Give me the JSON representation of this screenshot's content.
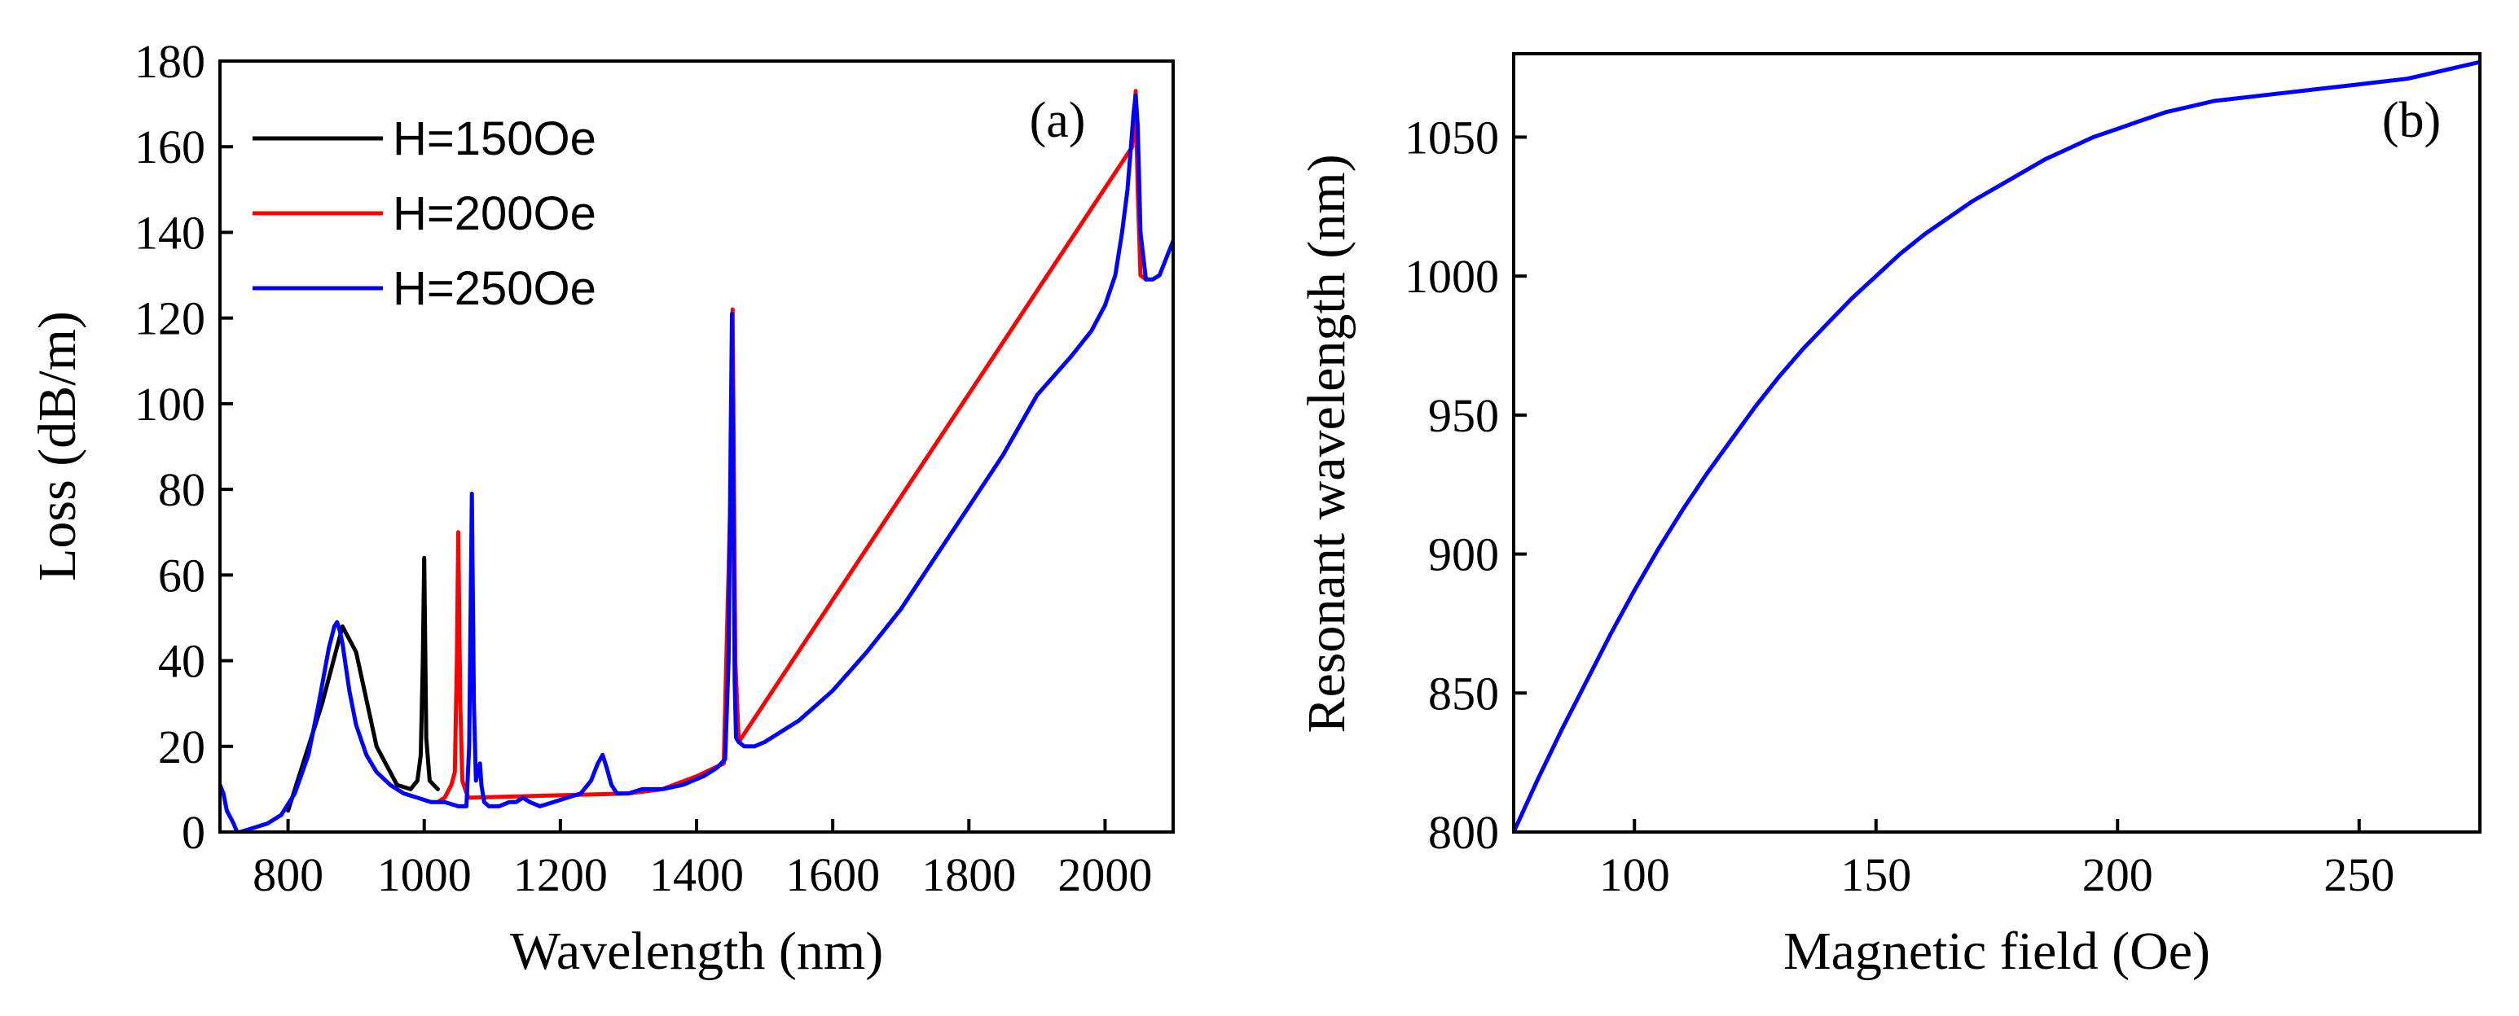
{
  "chart_data": [
    {
      "type": "line",
      "panel_label": "(a)",
      "xlabel": "Wavelength (nm)",
      "ylabel": "Loss (dB/m)",
      "xlim": [
        700,
        2100
      ],
      "ylim": [
        0,
        180
      ],
      "xticks": [
        800,
        1000,
        1200,
        1400,
        1600,
        1800,
        2000
      ],
      "yticks": [
        0,
        20,
        40,
        60,
        80,
        100,
        120,
        140,
        160,
        180
      ],
      "legend_position": "top-left",
      "series": [
        {
          "name": "H=150Oe",
          "color": "#000000",
          "x": [
            800,
            850,
            880,
            900,
            930,
            960,
            980,
            990,
            995,
            998,
            1000,
            1003,
            1008,
            1020
          ],
          "y": [
            5,
            30,
            48,
            42,
            20,
            11,
            10,
            12,
            18,
            40,
            64,
            22,
            12,
            10
          ]
        },
        {
          "name": "H=200Oe",
          "color": "#ff0000",
          "x": [
            1020,
            1030,
            1040,
            1045,
            1048,
            1050,
            1053,
            1056,
            1060,
            1065,
            1300,
            1350,
            1400,
            1440,
            1450,
            1453,
            1457,
            1462,
            2040,
            2045,
            2048,
            2052,
            2060
          ],
          "y": [
            7,
            8,
            11,
            14,
            40,
            70,
            30,
            12,
            10,
            8,
            9,
            10,
            13,
            16,
            80,
            122,
            40,
            21,
            160,
            173,
            150,
            130,
            129
          ]
        },
        {
          "name": "H=250Oe",
          "color": "#0000ff",
          "x": [
            700,
            705,
            710,
            720,
            725,
            730,
            750,
            770,
            790,
            810,
            830,
            845,
            860,
            868,
            872,
            876,
            880,
            890,
            900,
            915,
            930,
            950,
            970,
            990,
            1010,
            1030,
            1050,
            1062,
            1066,
            1070,
            1073,
            1076,
            1079,
            1082,
            1084,
            1088,
            1095,
            1110,
            1125,
            1135,
            1145,
            1155,
            1170,
            1190,
            1210,
            1230,
            1245,
            1255,
            1262,
            1268,
            1275,
            1283,
            1290,
            1300,
            1320,
            1350,
            1380,
            1410,
            1430,
            1442,
            1447,
            1450,
            1452,
            1454,
            1456,
            1458,
            1462,
            1470,
            1485,
            1500,
            1520,
            1550,
            1600,
            1650,
            1700,
            1750,
            1800,
            1850,
            1900,
            1950,
            1980,
            2000,
            2015,
            2025,
            2033,
            2038,
            2042,
            2045,
            2048,
            2052,
            2060,
            2070,
            2080,
            2090,
            2100
          ],
          "y": [
            11,
            9,
            5,
            2,
            0,
            0,
            1,
            2,
            4,
            9,
            18,
            30,
            43,
            48,
            49,
            47,
            44,
            33,
            25,
            18,
            14,
            11,
            9,
            8,
            7,
            7,
            6,
            6,
            20,
            79,
            30,
            12,
            14,
            16,
            11,
            7,
            6,
            6,
            7,
            7,
            8,
            7,
            6,
            7,
            8,
            9,
            12,
            16,
            18,
            15,
            11,
            9,
            9,
            9,
            10,
            10,
            11,
            13,
            15,
            17,
            40,
            90,
            121,
            80,
            35,
            22,
            21,
            20,
            20,
            21,
            23,
            26,
            33,
            42,
            52,
            64,
            76,
            88,
            102,
            111,
            117,
            123,
            130,
            140,
            150,
            160,
            168,
            172,
            165,
            140,
            129,
            129,
            130,
            134,
            138
          ]
        }
      ]
    },
    {
      "type": "line",
      "panel_label": "(b)",
      "xlabel": "Magnetic field (Oe)",
      "ylabel": "Resonant wavelength (nm)",
      "xlim": [
        75,
        275
      ],
      "ylim": [
        800,
        1080
      ],
      "xticks": [
        100,
        150,
        200,
        250
      ],
      "yticks": [
        800,
        850,
        900,
        950,
        1000,
        1050
      ],
      "series": [
        {
          "name": "Resonant wavelength",
          "color": "#0000ff",
          "x": [
            75,
            80,
            85,
            90,
            95,
            100,
            105,
            110,
            115,
            120,
            125,
            130,
            135,
            140,
            145,
            150,
            155,
            160,
            165,
            170,
            175,
            180,
            185,
            190,
            195,
            200,
            205,
            210,
            215,
            220,
            225,
            230,
            235,
            240,
            245,
            250,
            255,
            260,
            265,
            270,
            275
          ],
          "y": [
            800,
            819,
            837,
            854,
            871,
            887,
            902,
            916,
            929,
            941,
            953,
            964,
            974,
            983,
            992,
            1000,
            1008,
            1015,
            1021,
            1027,
            1032,
            1037,
            1042,
            1046,
            1050,
            1053,
            1056,
            1059,
            1061,
            1063,
            1064,
            1065,
            1066,
            1067,
            1068,
            1069,
            1070,
            1071,
            1073,
            1075,
            1077
          ]
        }
      ]
    }
  ]
}
